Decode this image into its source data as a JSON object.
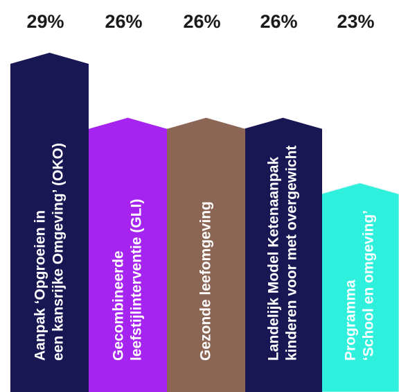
{
  "chart_data": {
    "type": "bar",
    "orientation": "vertical",
    "value_unit": "%",
    "categories": [
      [
        "Aanpak ‘Opgroeien in",
        "een kansrijke Omgeving’ (OKO)"
      ],
      [
        "Gecombineerde",
        "leefstijlinterventie (GLI)"
      ],
      [
        "Gezonde leefomgeving"
      ],
      [
        "Landelijk Model Ketenaanpak",
        "kinderen voor met overgewicht"
      ],
      [
        "Programma",
        "‘School en omgeving’"
      ]
    ],
    "values": [
      29,
      26,
      26,
      26,
      23
    ],
    "value_labels": [
      "29%",
      "26%",
      "26%",
      "26%",
      "23%"
    ],
    "colors": [
      "#191654",
      "#a524ef",
      "#8c6655",
      "#191654",
      "#2ff0dc"
    ],
    "ylim": [
      0,
      29
    ],
    "grid": false,
    "legend": "none"
  }
}
